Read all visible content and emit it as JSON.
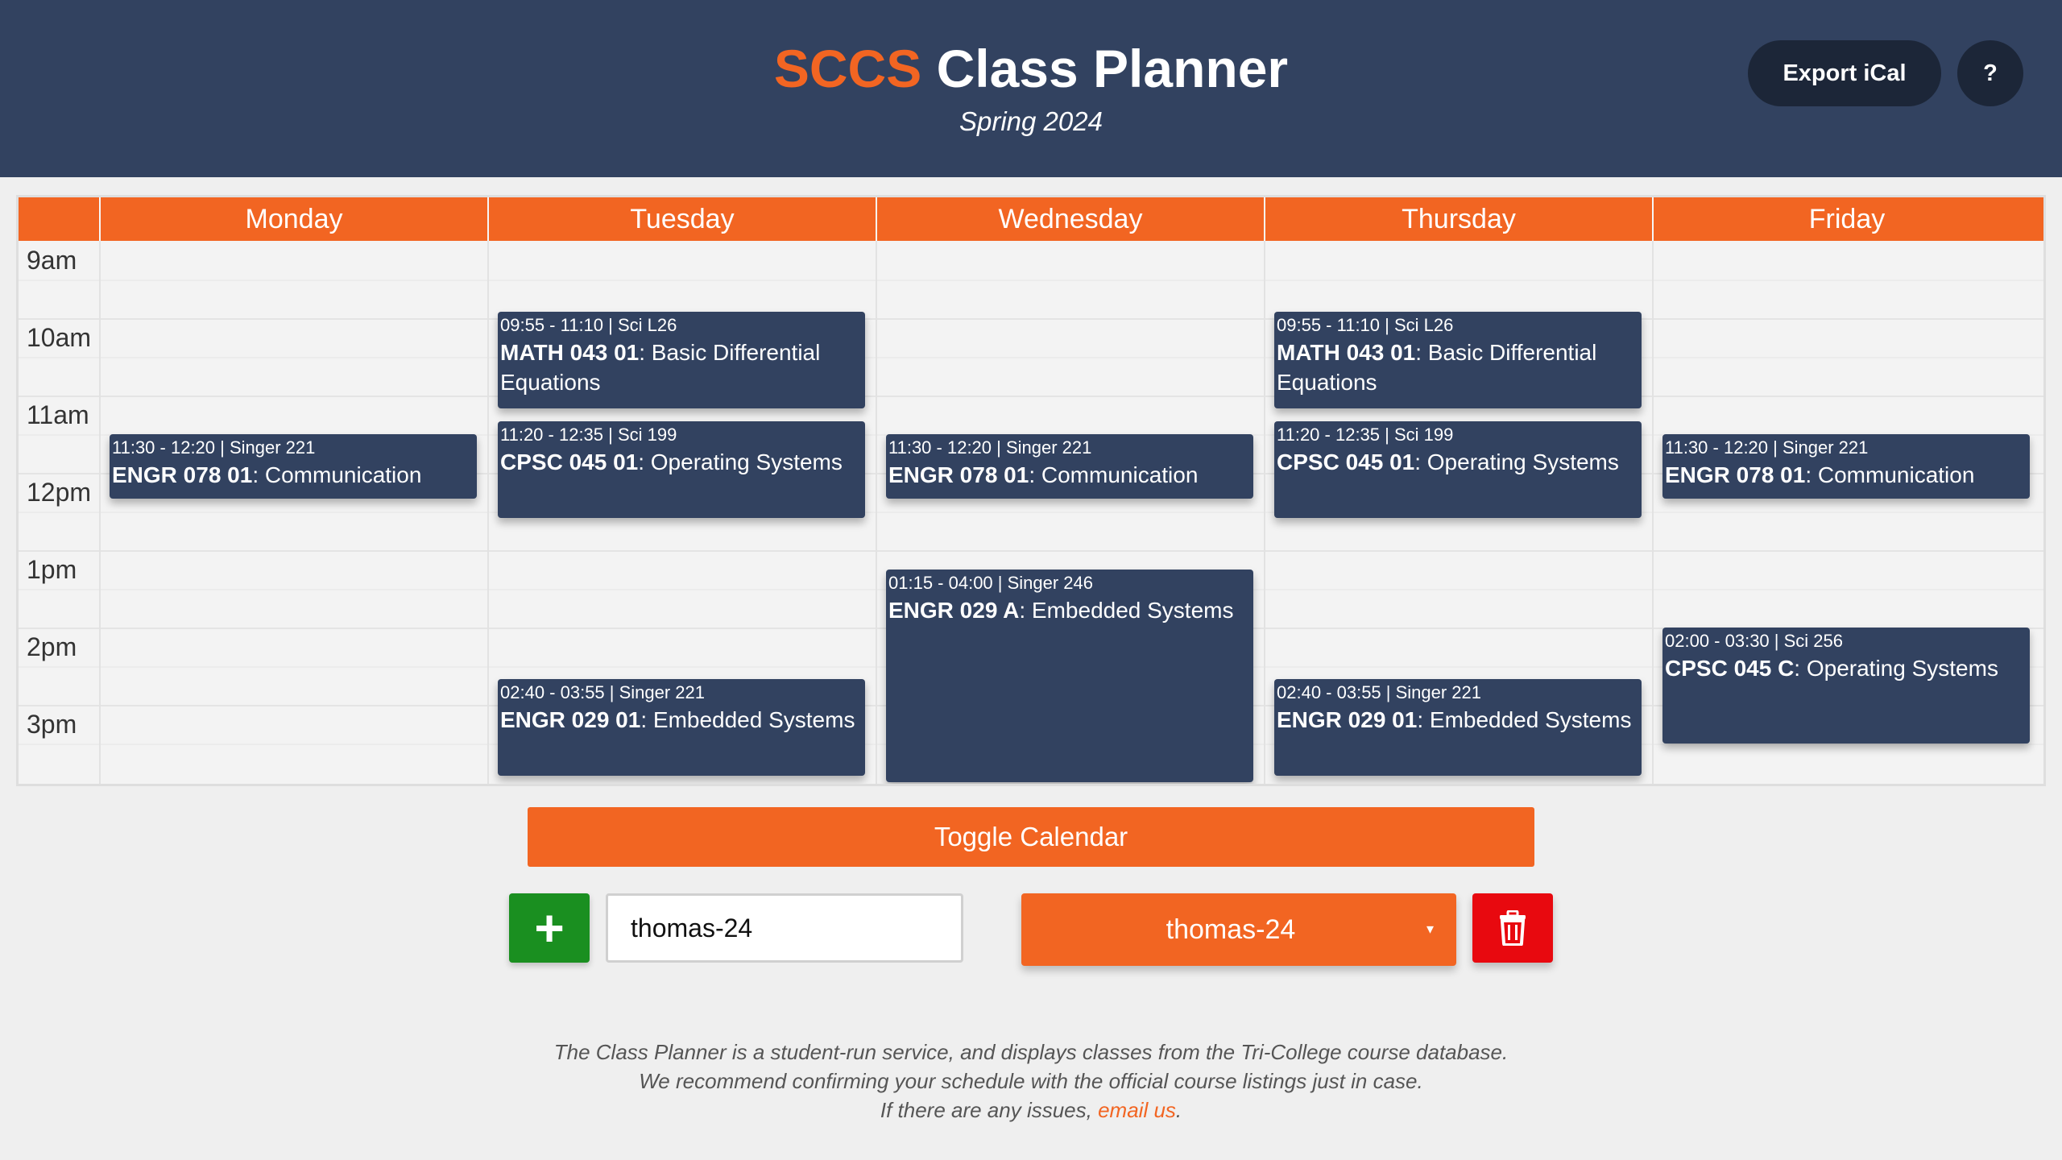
{
  "header": {
    "brand": "SCCS",
    "title": "Class Planner",
    "subtitle": "Spring 2024",
    "export_label": "Export iCal",
    "help_label": "?"
  },
  "calendar": {
    "days": [
      "Monday",
      "Tuesday",
      "Wednesday",
      "Thursday",
      "Friday"
    ],
    "times": [
      "9am",
      "10am",
      "11am",
      "12pm",
      "1pm",
      "2pm",
      "3pm"
    ],
    "events": [
      {
        "day": "Monday",
        "time": "11:30 - 12:20 | Singer 221",
        "code": "ENGR 078 01",
        "name": ": Communication"
      },
      {
        "day": "Tuesday",
        "time": "09:55 - 11:10 | Sci L26",
        "code": "MATH 043 01",
        "name": ": Basic Differential Equations"
      },
      {
        "day": "Tuesday",
        "time": "11:20 - 12:35 | Sci 199",
        "code": "CPSC 045 01",
        "name": ": Operating Systems"
      },
      {
        "day": "Tuesday",
        "time": "02:40 - 03:55 | Singer 221",
        "code": "ENGR 029 01",
        "name": ": Embedded Systems"
      },
      {
        "day": "Wednesday",
        "time": "11:30 - 12:20 | Singer 221",
        "code": "ENGR 078 01",
        "name": ": Communication"
      },
      {
        "day": "Wednesday",
        "time": "01:15 - 04:00 | Singer 246",
        "code": "ENGR 029 A",
        "name": ": Embedded Systems"
      },
      {
        "day": "Thursday",
        "time": "09:55 - 11:10 | Sci L26",
        "code": "MATH 043 01",
        "name": ": Basic Differential Equations"
      },
      {
        "day": "Thursday",
        "time": "11:20 - 12:35 | Sci 199",
        "code": "CPSC 045 01",
        "name": ": Operating Systems"
      },
      {
        "day": "Thursday",
        "time": "02:40 - 03:55 | Singer 221",
        "code": "ENGR 029 01",
        "name": ": Embedded Systems"
      },
      {
        "day": "Friday",
        "time": "11:30 - 12:20 | Singer 221",
        "code": "ENGR 078 01",
        "name": ": Communication"
      },
      {
        "day": "Friday",
        "time": "02:00 - 03:30 | Sci 256",
        "code": "CPSC 045 C",
        "name": ": Operating Systems"
      }
    ]
  },
  "controls": {
    "toggle_label": "Toggle Calendar",
    "add_label": "+",
    "input_value": "thomas-24",
    "selected_schedule": "thomas-24",
    "caret": "▾"
  },
  "footer": {
    "line1": "The Class Planner is a student-run service, and displays classes from the Tri-College course database.",
    "line2": "We recommend confirming your schedule with the official course listings just in case.",
    "line3_prefix": "If there are any issues, ",
    "link_label": "email us",
    "line3_suffix": "."
  },
  "colors": {
    "navy": "#324260",
    "orange": "#f26522",
    "green": "#1a8f20",
    "red": "#e8090f"
  },
  "icons": {
    "add": "plus-icon",
    "delete": "trash-icon",
    "dropdown": "chevron-down-icon"
  }
}
